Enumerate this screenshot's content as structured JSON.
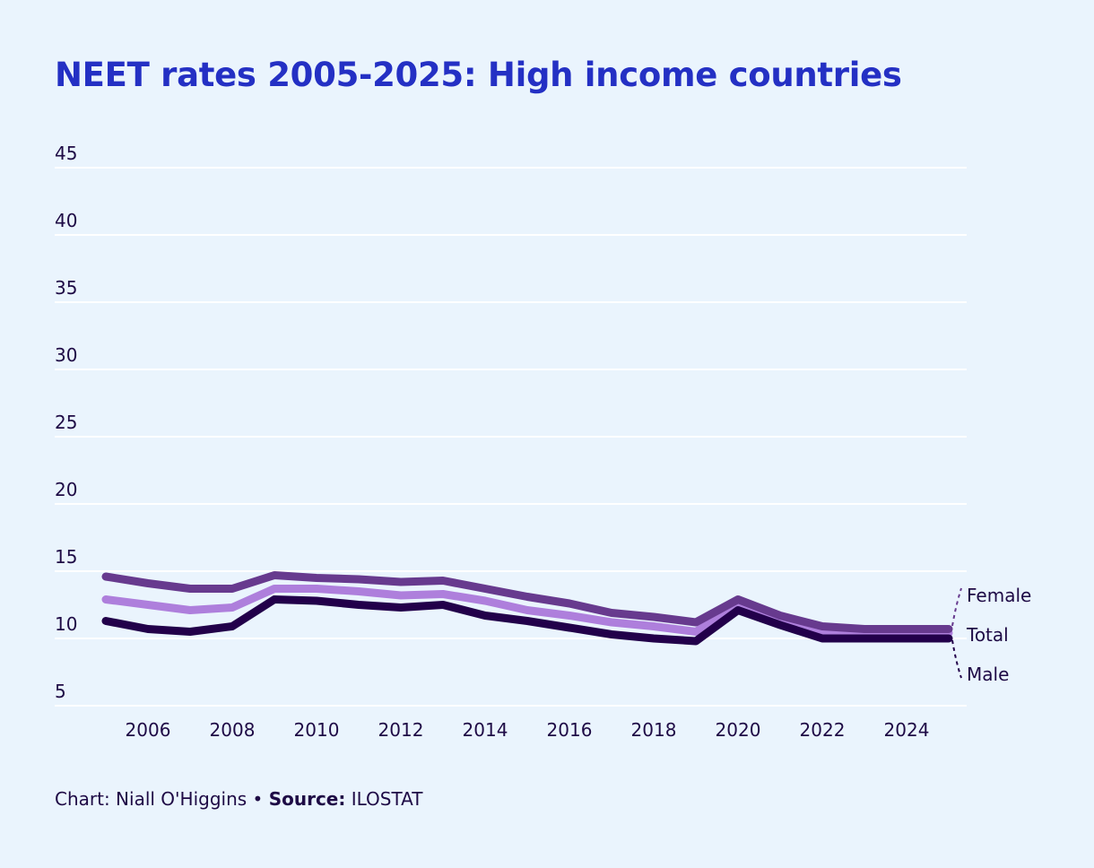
{
  "chart_data": {
    "type": "line",
    "title": "NEET rates 2005-2025: High income countries",
    "xlabel": "",
    "ylabel": "",
    "x": [
      2005,
      2006,
      2007,
      2008,
      2009,
      2010,
      2011,
      2012,
      2013,
      2014,
      2015,
      2016,
      2017,
      2018,
      2019,
      2020,
      2021,
      2022,
      2023,
      2024,
      2025
    ],
    "xticks": [
      "2006",
      "2008",
      "2010",
      "2012",
      "2014",
      "2016",
      "2018",
      "2020",
      "2022",
      "2024"
    ],
    "yticks": [
      "5",
      "10",
      "15",
      "20",
      "25",
      "30",
      "35",
      "40",
      "45"
    ],
    "ylim": [
      5,
      45
    ],
    "xlim": [
      2005,
      2025
    ],
    "grid": true,
    "legend": "direct labels at right end",
    "series": [
      {
        "name": "Female",
        "color": "#673a8e",
        "values": [
          14.6,
          14.1,
          13.7,
          13.7,
          14.7,
          14.5,
          14.4,
          14.2,
          14.3,
          13.7,
          13.1,
          12.6,
          11.9,
          11.6,
          11.2,
          12.9,
          11.7,
          10.9,
          10.7,
          10.7,
          10.7
        ]
      },
      {
        "name": "Total",
        "color": "#ae7fdc",
        "values": [
          12.9,
          12.5,
          12.1,
          12.3,
          13.7,
          13.7,
          13.5,
          13.2,
          13.3,
          12.8,
          12.1,
          11.7,
          11.2,
          10.9,
          10.5,
          12.4,
          11.5,
          10.5,
          10.4,
          10.4,
          10.4
        ]
      },
      {
        "name": "Male",
        "color": "#22004a",
        "values": [
          11.3,
          10.7,
          10.5,
          10.9,
          12.9,
          12.8,
          12.5,
          12.3,
          12.5,
          11.7,
          11.3,
          10.8,
          10.3,
          10.0,
          9.8,
          12.1,
          11.0,
          10.0,
          10.0,
          10.0,
          10.0
        ]
      }
    ]
  },
  "caption": {
    "chart_prefix": "Chart: Niall O'Higgins • ",
    "source_label": "Source:",
    "source_value": " ILOSTAT"
  }
}
